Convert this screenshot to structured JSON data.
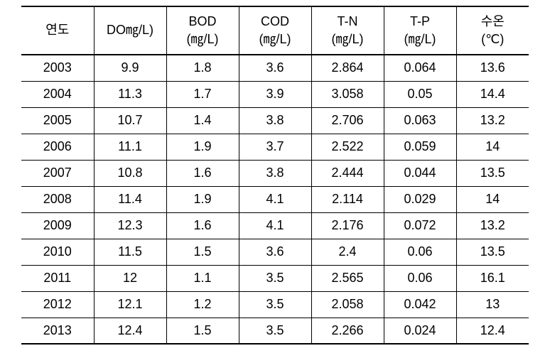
{
  "table": {
    "columns": [
      {
        "name": "year",
        "line1": "연도",
        "line2": ""
      },
      {
        "name": "do",
        "line1": "DO㎎/L)",
        "line2": ""
      },
      {
        "name": "bod",
        "line1": "BOD",
        "line2": "(㎎/L)"
      },
      {
        "name": "cod",
        "line1": "COD",
        "line2": "(㎎/L)"
      },
      {
        "name": "tn",
        "line1": "T-N",
        "line2": "(㎎/L)"
      },
      {
        "name": "tp",
        "line1": "T-P",
        "line2": "(㎎/L)"
      },
      {
        "name": "temp",
        "line1": "수온",
        "line2": "(℃)"
      }
    ],
    "rows": [
      [
        "2003",
        "9.9",
        "1.8",
        "3.6",
        "2.864",
        "0.064",
        "13.6"
      ],
      [
        "2004",
        "11.3",
        "1.7",
        "3.9",
        "3.058",
        "0.05",
        "14.4"
      ],
      [
        "2005",
        "10.7",
        "1.4",
        "3.8",
        "2.706",
        "0.063",
        "13.2"
      ],
      [
        "2006",
        "11.1",
        "1.9",
        "3.7",
        "2.522",
        "0.059",
        "14"
      ],
      [
        "2007",
        "10.8",
        "1.6",
        "3.8",
        "2.444",
        "0.044",
        "13.5"
      ],
      [
        "2008",
        "11.4",
        "1.9",
        "4.1",
        "2.114",
        "0.029",
        "14"
      ],
      [
        "2009",
        "12.3",
        "1.6",
        "4.1",
        "2.176",
        "0.072",
        "13.2"
      ],
      [
        "2010",
        "11.5",
        "1.5",
        "3.6",
        "2.4",
        "0.06",
        "13.5"
      ],
      [
        "2011",
        "12",
        "1.1",
        "3.5",
        "2.565",
        "0.06",
        "16.1"
      ],
      [
        "2012",
        "12.1",
        "1.2",
        "3.5",
        "2.058",
        "0.042",
        "13"
      ],
      [
        "2013",
        "12.4",
        "1.5",
        "3.5",
        "2.266",
        "0.024",
        "12.4"
      ]
    ],
    "border_color": "#000000",
    "background_color": "#ffffff",
    "text_color": "#000000",
    "font_size": 18
  }
}
